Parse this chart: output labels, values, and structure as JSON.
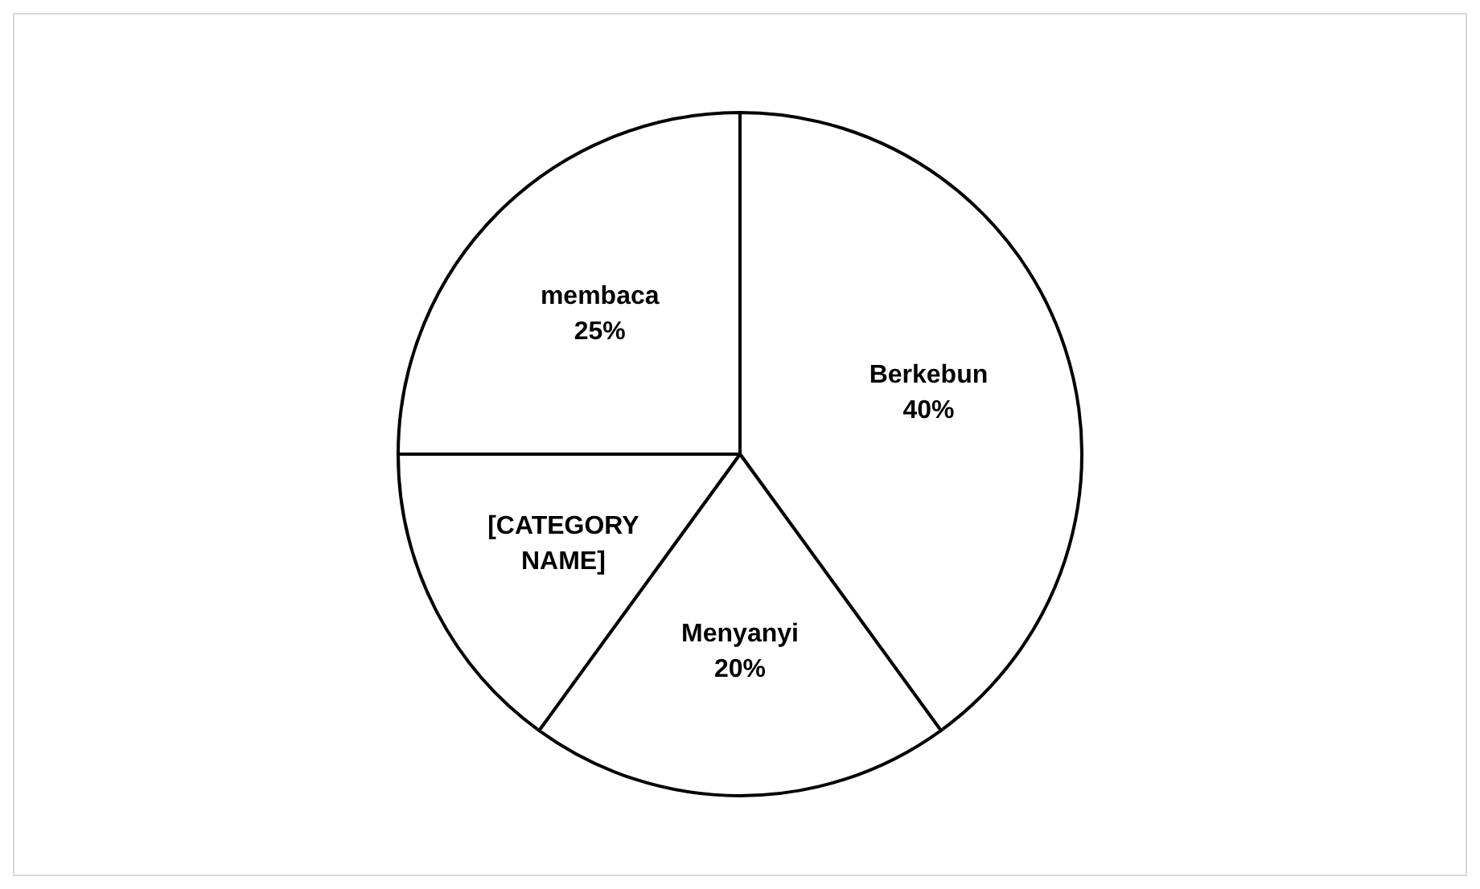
{
  "chart_data": {
    "type": "pie",
    "categories": [
      "Berkebun",
      "Menyanyi",
      "[CATEGORY NAME]",
      "membaca"
    ],
    "values": [
      40,
      20,
      15,
      25
    ],
    "colors": [
      "#ffffff",
      "#ffffff",
      "#ffffff",
      "#ffffff"
    ],
    "value_labels": [
      "40%",
      "20%",
      null,
      "25%"
    ],
    "legend": false
  }
}
